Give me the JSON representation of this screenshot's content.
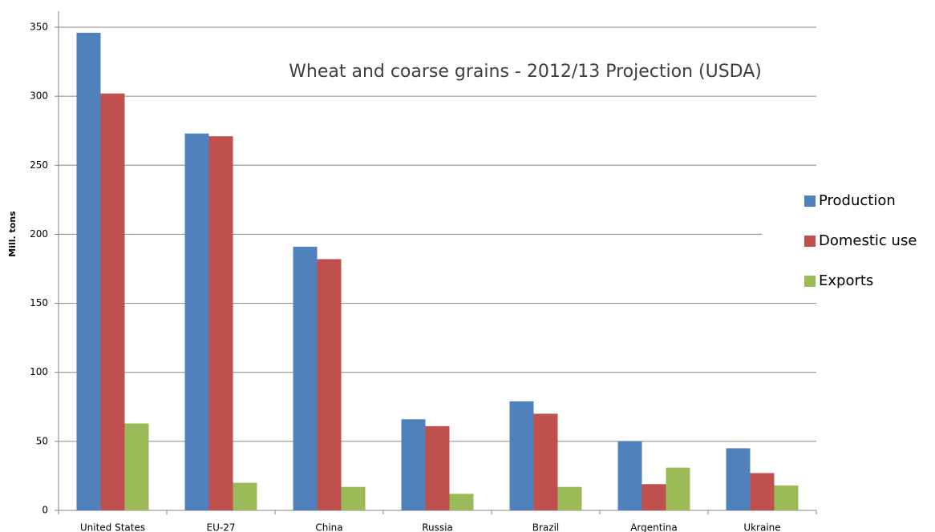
{
  "chart_data": {
    "type": "bar",
    "title": "Wheat and coarse grains  - 2012/13 Projection (USDA)",
    "y_label": "Mill. tons",
    "categories": [
      "United States",
      "EU-27",
      "China",
      "Russia",
      "Brazil",
      "Argentina",
      "Ukraine"
    ],
    "series": [
      {
        "name": "Production",
        "color": "#4f81bd",
        "values": [
          346,
          273,
          191,
          66,
          79,
          50,
          45
        ]
      },
      {
        "name": "Domestic use",
        "color": "#c0504d",
        "values": [
          302,
          271,
          182,
          61,
          70,
          19,
          27
        ]
      },
      {
        "name": "Exports",
        "color": "#9bbb59",
        "values": [
          63,
          20,
          17,
          12,
          17,
          31,
          18
        ]
      }
    ],
    "ylim": [
      0,
      350
    ],
    "yticks": [
      0,
      50,
      100,
      150,
      200,
      250,
      300,
      350
    ],
    "grid": true,
    "legend": "right"
  }
}
